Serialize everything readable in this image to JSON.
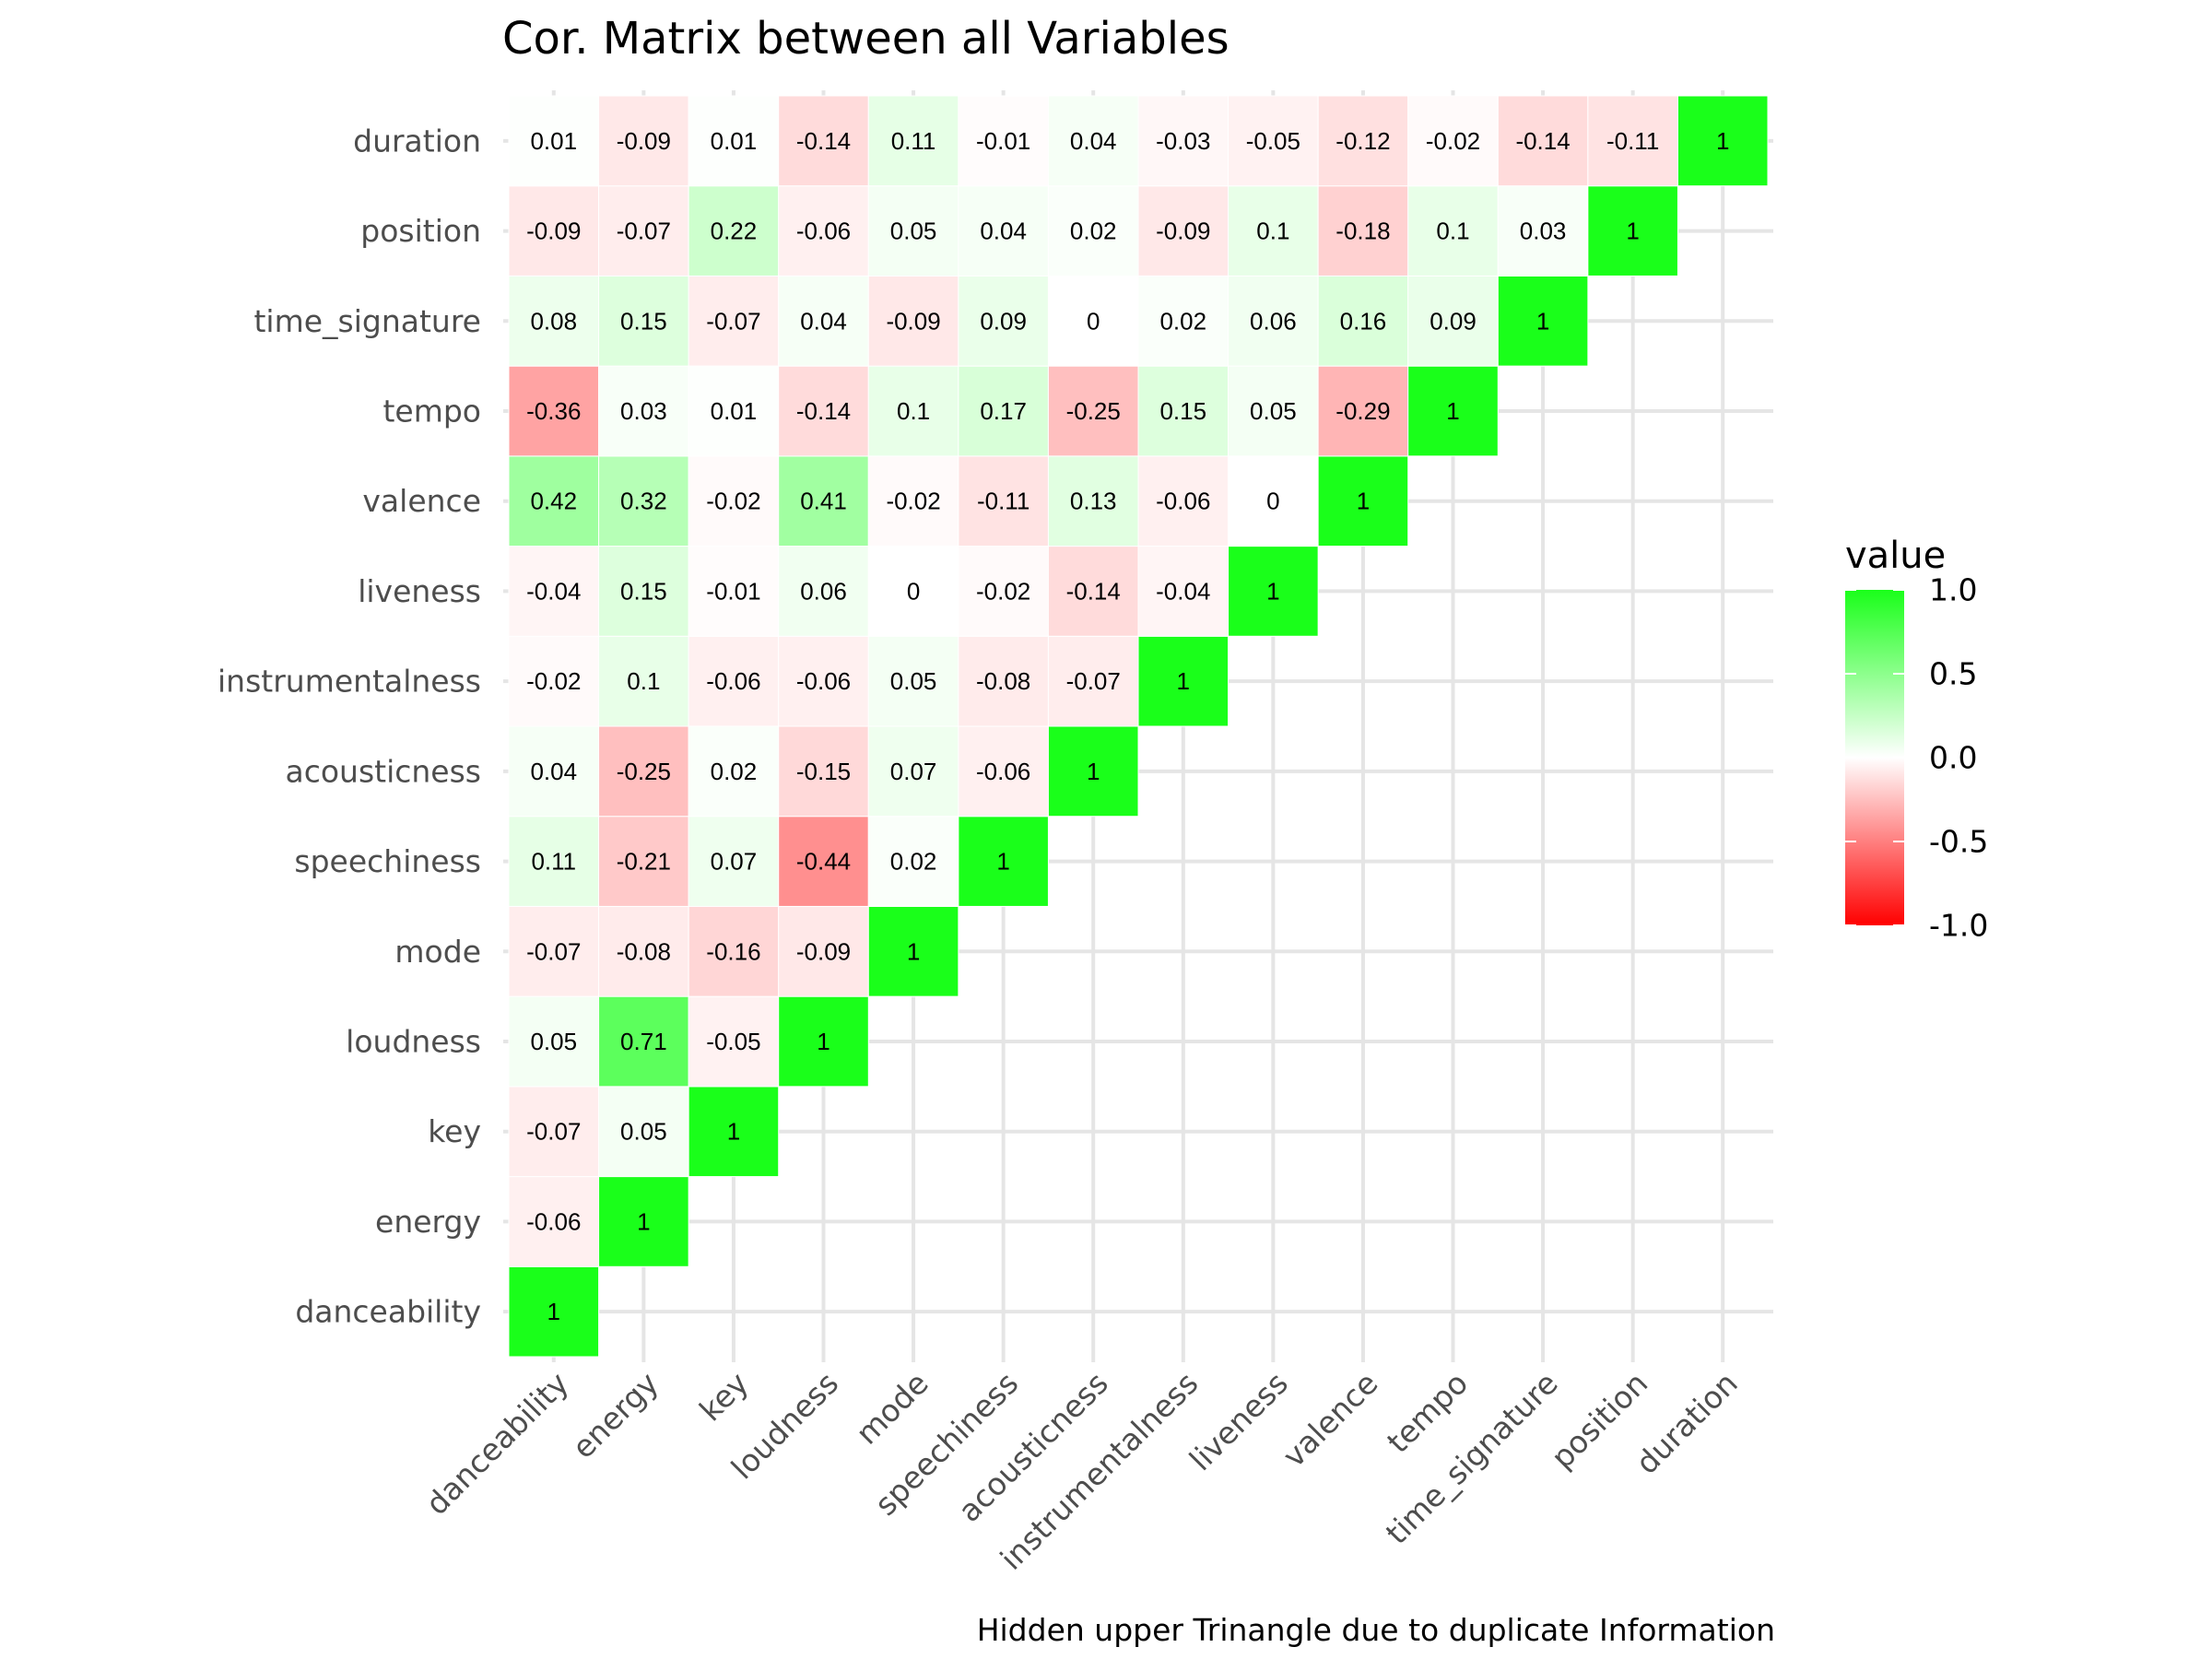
{
  "chart_data": {
    "type": "heatmap",
    "title": "Cor. Matrix between all Variables",
    "caption": "Hidden upper Trinangle due to duplicate Information",
    "variables": [
      "danceability",
      "energy",
      "key",
      "loudness",
      "mode",
      "speechiness",
      "acousticness",
      "instrumentalness",
      "liveness",
      "valence",
      "tempo",
      "time_signature",
      "position",
      "duration"
    ],
    "matrix": [
      [
        1
      ],
      [
        -0.06,
        1
      ],
      [
        -0.07,
        0.05,
        1
      ],
      [
        0.05,
        0.71,
        -0.05,
        1
      ],
      [
        -0.07,
        -0.08,
        -0.16,
        -0.09,
        1
      ],
      [
        0.11,
        -0.21,
        0.07,
        -0.44,
        0.02,
        1
      ],
      [
        0.04,
        -0.25,
        0.02,
        -0.15,
        0.07,
        -0.06,
        1
      ],
      [
        -0.02,
        0.1,
        -0.06,
        -0.06,
        0.05,
        -0.08,
        -0.07,
        1
      ],
      [
        -0.04,
        0.15,
        -0.01,
        0.06,
        0,
        -0.02,
        -0.14,
        -0.04,
        1
      ],
      [
        0.42,
        0.32,
        -0.02,
        0.41,
        -0.02,
        -0.11,
        0.13,
        -0.06,
        0,
        1
      ],
      [
        -0.36,
        0.03,
        0.01,
        -0.14,
        0.1,
        0.17,
        -0.25,
        0.15,
        0.05,
        -0.29,
        1
      ],
      [
        0.08,
        0.15,
        -0.07,
        0.04,
        -0.09,
        0.09,
        0,
        0.02,
        0.06,
        0.16,
        0.09,
        1
      ],
      [
        -0.09,
        -0.07,
        0.22,
        -0.06,
        0.05,
        0.04,
        0.02,
        -0.09,
        0.1,
        -0.18,
        0.1,
        0.03,
        1
      ],
      [
        0.01,
        -0.09,
        0.01,
        -0.14,
        0.11,
        -0.01,
        0.04,
        -0.03,
        -0.05,
        -0.12,
        -0.02,
        -0.14,
        -0.11,
        1
      ]
    ],
    "legend": {
      "title": "value",
      "ticks": [
        "1.0",
        "0.5",
        "0.0",
        "-0.5",
        "-1.0"
      ],
      "tick_values": [
        1,
        0.5,
        0,
        -0.5,
        -1
      ],
      "placement": "right"
    },
    "scale": {
      "low": "#ff0000",
      "mid": "#ffffff",
      "high": "#1aff1a",
      "limits": [
        -1,
        1
      ]
    },
    "grid": true
  }
}
